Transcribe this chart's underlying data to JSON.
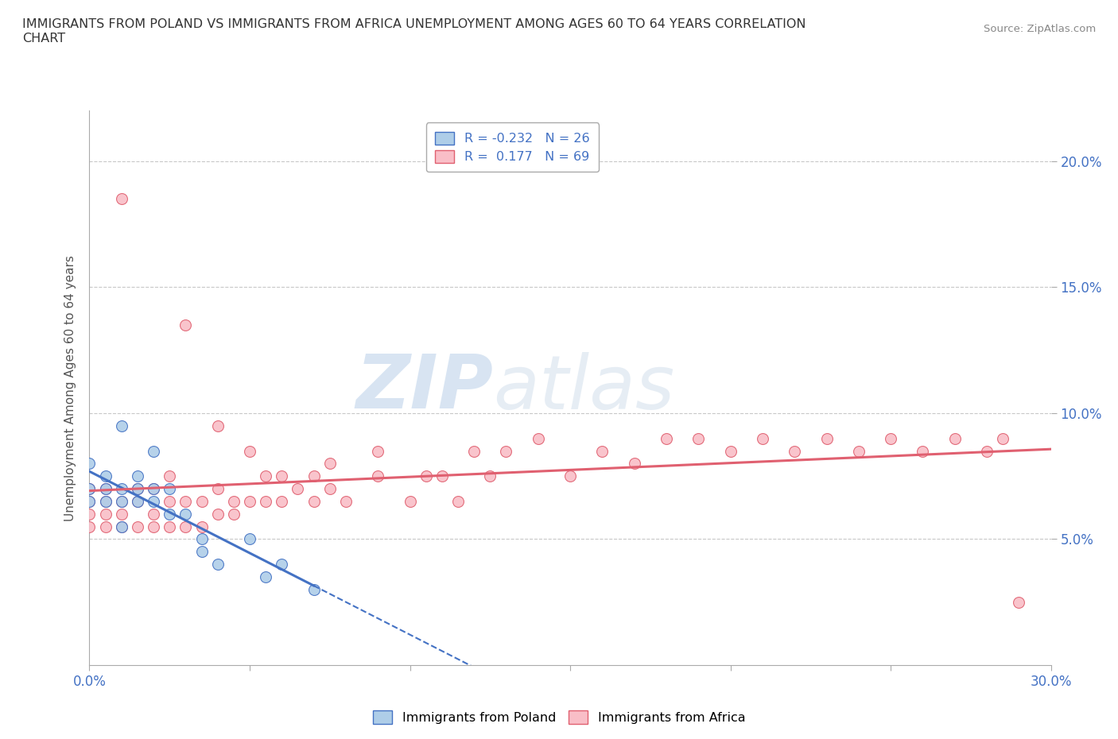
{
  "title": "IMMIGRANTS FROM POLAND VS IMMIGRANTS FROM AFRICA UNEMPLOYMENT AMONG AGES 60 TO 64 YEARS CORRELATION\nCHART",
  "source": "Source: ZipAtlas.com",
  "ylabel": "Unemployment Among Ages 60 to 64 years",
  "xlim": [
    0.0,
    0.3
  ],
  "ylim": [
    0.0,
    0.22
  ],
  "yticks": [
    0.05,
    0.1,
    0.15,
    0.2
  ],
  "ytick_labels": [
    "5.0%",
    "10.0%",
    "15.0%",
    "20.0%"
  ],
  "xticks": [
    0.0,
    0.05,
    0.1,
    0.15,
    0.2,
    0.25,
    0.3
  ],
  "xtick_labels": [
    "0.0%",
    "",
    "",
    "",
    "",
    "",
    "30.0%"
  ],
  "background_color": "#ffffff",
  "grid_color": "#c8c8c8",
  "watermark_zip": "ZIP",
  "watermark_atlas": "atlas",
  "poland_scatter_color": "#aecde8",
  "africa_scatter_color": "#f9bec7",
  "poland_line_color": "#4472c4",
  "africa_line_color": "#e06070",
  "poland_R": -0.232,
  "poland_N": 26,
  "africa_R": 0.177,
  "africa_N": 69,
  "poland_points_x": [
    0.0,
    0.0,
    0.0,
    0.005,
    0.005,
    0.005,
    0.01,
    0.01,
    0.01,
    0.01,
    0.015,
    0.015,
    0.015,
    0.02,
    0.02,
    0.02,
    0.025,
    0.025,
    0.03,
    0.035,
    0.035,
    0.04,
    0.05,
    0.055,
    0.06,
    0.07
  ],
  "poland_points_y": [
    0.08,
    0.07,
    0.065,
    0.065,
    0.07,
    0.075,
    0.055,
    0.065,
    0.07,
    0.095,
    0.065,
    0.07,
    0.075,
    0.065,
    0.07,
    0.085,
    0.06,
    0.07,
    0.06,
    0.045,
    0.05,
    0.04,
    0.05,
    0.035,
    0.04,
    0.03
  ],
  "africa_points_x": [
    0.0,
    0.0,
    0.0,
    0.0,
    0.005,
    0.005,
    0.005,
    0.005,
    0.01,
    0.01,
    0.01,
    0.01,
    0.015,
    0.015,
    0.015,
    0.02,
    0.02,
    0.02,
    0.025,
    0.025,
    0.025,
    0.03,
    0.03,
    0.03,
    0.035,
    0.035,
    0.04,
    0.04,
    0.04,
    0.045,
    0.045,
    0.05,
    0.05,
    0.055,
    0.055,
    0.06,
    0.06,
    0.065,
    0.07,
    0.07,
    0.075,
    0.075,
    0.08,
    0.09,
    0.09,
    0.1,
    0.105,
    0.11,
    0.115,
    0.12,
    0.125,
    0.13,
    0.14,
    0.15,
    0.16,
    0.17,
    0.18,
    0.19,
    0.2,
    0.21,
    0.22,
    0.23,
    0.24,
    0.25,
    0.26,
    0.27,
    0.28,
    0.285,
    0.29
  ],
  "africa_points_y": [
    0.055,
    0.06,
    0.065,
    0.07,
    0.055,
    0.06,
    0.065,
    0.07,
    0.055,
    0.06,
    0.065,
    0.185,
    0.055,
    0.065,
    0.07,
    0.055,
    0.06,
    0.07,
    0.055,
    0.065,
    0.075,
    0.055,
    0.065,
    0.135,
    0.055,
    0.065,
    0.06,
    0.07,
    0.095,
    0.06,
    0.065,
    0.065,
    0.085,
    0.065,
    0.075,
    0.065,
    0.075,
    0.07,
    0.065,
    0.075,
    0.07,
    0.08,
    0.065,
    0.075,
    0.085,
    0.065,
    0.075,
    0.075,
    0.065,
    0.085,
    0.075,
    0.085,
    0.09,
    0.075,
    0.085,
    0.08,
    0.09,
    0.09,
    0.085,
    0.09,
    0.085,
    0.09,
    0.085,
    0.09,
    0.085,
    0.09,
    0.085,
    0.09,
    0.025
  ]
}
